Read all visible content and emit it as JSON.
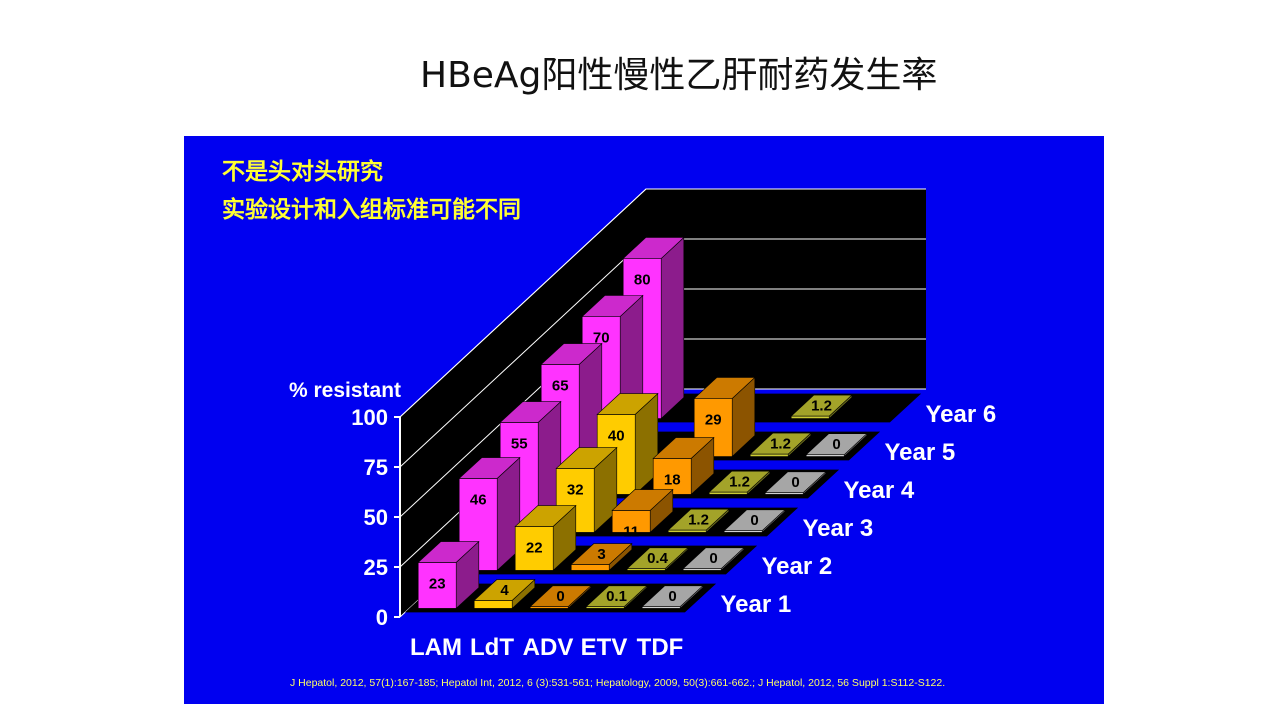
{
  "slide": {
    "title": "HBeAg阳性慢性乙肝耐药发生率"
  },
  "notes": {
    "line1": "不是头对头研究",
    "line2": "实验设计和入组标准可能不同"
  },
  "reference": "J Hepatol, 2012, 57(1):167-185;  Hepatol Int, 2012, 6 (3):531-561;  Hepatology, 2009, 50(3):661-662.;  J Hepatol, 2012, 56 Suppl 1:S112-S122.",
  "colors": {
    "background": "#0000f0",
    "LAM": "#ff33ff",
    "LdT": "#ffcc00",
    "ADV": "#ff9900",
    "ETV": "#cccc33",
    "TDF": "#d0d0d0",
    "floor_stripe": "#000000",
    "text_yellow": "#ffff33"
  },
  "chart_data": {
    "type": "bar",
    "subtype": "3d-bar",
    "title": "",
    "ylabel": "% resistant",
    "ylim": [
      0,
      100
    ],
    "yticks": [
      0,
      25,
      50,
      75,
      100
    ],
    "categories": [
      "LAM",
      "LdT",
      "ADV",
      "ETV",
      "TDF"
    ],
    "series": [
      {
        "name": "Year 1",
        "values": [
          23,
          4,
          0,
          0.1,
          0
        ]
      },
      {
        "name": "Year 2",
        "values": [
          46,
          22,
          3,
          0.4,
          0
        ]
      },
      {
        "name": "Year 3",
        "values": [
          55,
          32,
          11,
          1.2,
          0
        ]
      },
      {
        "name": "Year 4",
        "values": [
          65,
          40,
          18,
          1.2,
          0
        ]
      },
      {
        "name": "Year 5",
        "values": [
          70,
          null,
          29,
          1.2,
          0
        ]
      },
      {
        "name": "Year 6",
        "values": [
          80,
          null,
          null,
          1.2,
          null
        ]
      }
    ]
  }
}
